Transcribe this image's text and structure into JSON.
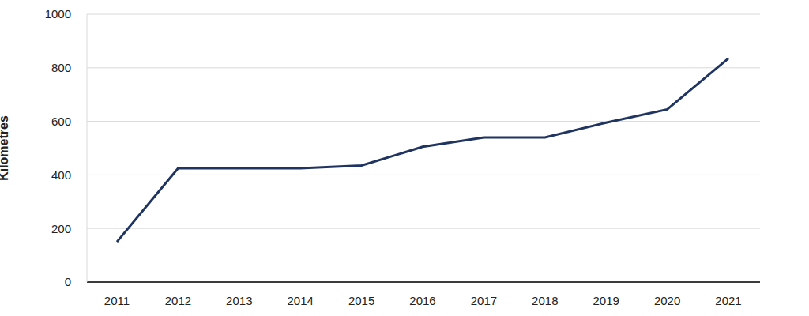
{
  "chart_data": {
    "type": "line",
    "y_label": "Kilometres",
    "categories": [
      "2011",
      "2012",
      "2013",
      "2014",
      "2015",
      "2016",
      "2017",
      "2018",
      "2019",
      "2020",
      "2021"
    ],
    "values": [
      150,
      425,
      425,
      425,
      435,
      505,
      540,
      540,
      595,
      645,
      835
    ],
    "color": "#1f3461",
    "ylim": [
      0,
      1000
    ],
    "yticks": [
      0,
      200,
      400,
      600,
      800,
      1000
    ],
    "grid": true
  }
}
